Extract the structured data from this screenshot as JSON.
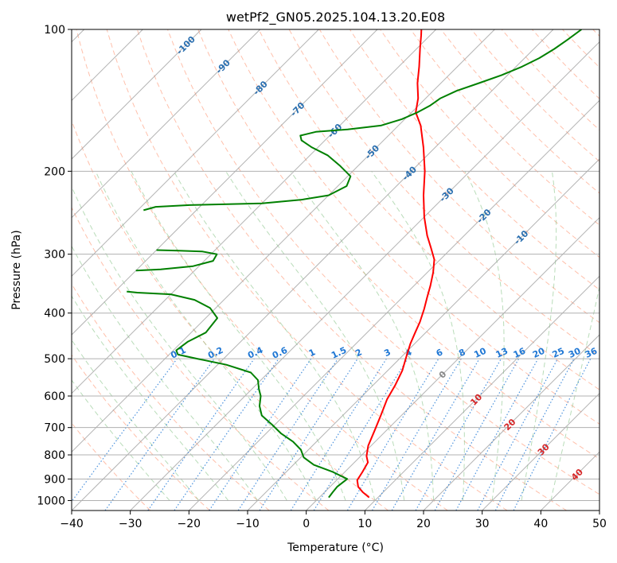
{
  "chart_data": {
    "type": "line",
    "title": "wetPf2_GN05.2025.104.13.20.E08",
    "xlabel": "Temperature (°C)",
    "ylabel": "Pressure (hPa)",
    "xlim": [
      -40,
      50
    ],
    "ylim": [
      1050,
      100
    ],
    "y_scale": "log",
    "skew": true,
    "grid": true,
    "x_ticks": [
      -40,
      -30,
      -20,
      -10,
      0,
      10,
      20,
      30,
      40,
      50
    ],
    "y_ticks": [
      100,
      200,
      300,
      400,
      500,
      600,
      700,
      800,
      900,
      1000
    ],
    "series": [
      {
        "color": "#ff0000",
        "points": [
          [
            8.5,
            985
          ],
          [
            6.5,
            960
          ],
          [
            4.8,
            935
          ],
          [
            3.5,
            905
          ],
          [
            3.0,
            870
          ],
          [
            2.3,
            830
          ],
          [
            1.0,
            805
          ],
          [
            -0.5,
            765
          ],
          [
            -2.0,
            710
          ],
          [
            -3.5,
            660
          ],
          [
            -5.2,
            610
          ],
          [
            -6.2,
            570
          ],
          [
            -7.5,
            530
          ],
          [
            -9.2,
            495
          ],
          [
            -10.7,
            465
          ],
          [
            -11.8,
            440
          ],
          [
            -12.8,
            418
          ],
          [
            -14.3,
            392
          ],
          [
            -15.8,
            370
          ],
          [
            -17.2,
            350
          ],
          [
            -19.0,
            328
          ],
          [
            -21.0,
            308
          ],
          [
            -23.7,
            290
          ],
          [
            -26.3,
            274
          ],
          [
            -30.0,
            250
          ],
          [
            -33.8,
            225
          ],
          [
            -37.7,
            200
          ],
          [
            -42.0,
            178
          ],
          [
            -46.2,
            160
          ],
          [
            -49.3,
            150
          ],
          [
            -51.3,
            140
          ],
          [
            -54.0,
            130
          ],
          [
            -56.5,
            120
          ],
          [
            -59.4,
            110
          ],
          [
            -61.5,
            103
          ],
          [
            -62.5,
            100
          ]
        ]
      },
      {
        "color": "#008000",
        "points": [
          [
            1.6,
            985
          ],
          [
            1.4,
            960
          ],
          [
            1.2,
            935
          ],
          [
            1.6,
            900
          ],
          [
            -2.0,
            870
          ],
          [
            -6.5,
            840
          ],
          [
            -9.5,
            810
          ],
          [
            -11.3,
            780
          ],
          [
            -14.0,
            750
          ],
          [
            -17.5,
            720
          ],
          [
            -20.5,
            690
          ],
          [
            -23.8,
            660
          ],
          [
            -25.8,
            630
          ],
          [
            -27.3,
            600
          ],
          [
            -28.8,
            580
          ],
          [
            -30.5,
            555
          ],
          [
            -33.0,
            535
          ],
          [
            -38.5,
            515
          ],
          [
            -44.5,
            500
          ],
          [
            -48.5,
            490
          ],
          [
            -49.5,
            480
          ],
          [
            -49.0,
            460
          ],
          [
            -47.5,
            440
          ],
          [
            -48.0,
            410
          ],
          [
            -51.0,
            390
          ],
          [
            -55.0,
            375
          ],
          [
            -60.0,
            365
          ],
          [
            -66.0,
            362
          ],
          [
            -68.0,
            360
          ]
        ]
      },
      {
        "color": "#008000",
        "points": [
          [
            -70.0,
            325
          ],
          [
            -66.0,
            323
          ],
          [
            -61.0,
            318
          ],
          [
            -58.5,
            310
          ],
          [
            -59.0,
            300
          ],
          [
            -62.0,
            296
          ],
          [
            -66.0,
            295
          ],
          [
            -70.0,
            294
          ]
        ]
      },
      {
        "color": "#008000",
        "points": [
          [
            -79.0,
            242
          ],
          [
            -77.5,
            238
          ],
          [
            -72.0,
            236
          ],
          [
            -60.0,
            234
          ],
          [
            -54.0,
            230
          ],
          [
            -50.0,
            225
          ],
          [
            -48.5,
            215
          ],
          [
            -49.5,
            205
          ],
          [
            -53.0,
            195
          ],
          [
            -57.0,
            185
          ],
          [
            -61.0,
            178
          ],
          [
            -64.0,
            172
          ],
          [
            -65.0,
            168
          ],
          [
            -63.0,
            165
          ],
          [
            -58.0,
            163
          ],
          [
            -53.0,
            160
          ],
          [
            -50.5,
            155
          ],
          [
            -49.0,
            150
          ],
          [
            -48.0,
            145
          ],
          [
            -47.5,
            140
          ],
          [
            -46.0,
            135
          ],
          [
            -43.5,
            130
          ],
          [
            -41.0,
            125
          ],
          [
            -39.0,
            120
          ],
          [
            -37.5,
            115
          ],
          [
            -36.5,
            110
          ],
          [
            -35.8,
            105
          ],
          [
            -35.2,
            100
          ]
        ]
      }
    ],
    "isotherm_labels": [
      "-100",
      "-90",
      "-80",
      "-70",
      "-60",
      "-50",
      "-40",
      "-30",
      "-20",
      "-10"
    ],
    "mixing_ratio_labels": [
      "0.1",
      "0.2",
      "0.4",
      "0.6",
      "1",
      "1.5",
      "2",
      "3",
      "4",
      "6",
      "8",
      "10",
      "13",
      "16",
      "20",
      "25",
      "30",
      "36"
    ],
    "positive_isotherm_labels": [
      "0",
      "10",
      "20",
      "30",
      "40"
    ],
    "colors": {
      "temperature": "#ff0000",
      "dewpoint": "#008000",
      "isotherm_text": "#2a6fb0",
      "mixing_ratio": "#1f77d4",
      "dry_adiabat": "#ff8c66",
      "moist_adiabat": "#7fc07f",
      "positive_text": "#d62728"
    }
  }
}
